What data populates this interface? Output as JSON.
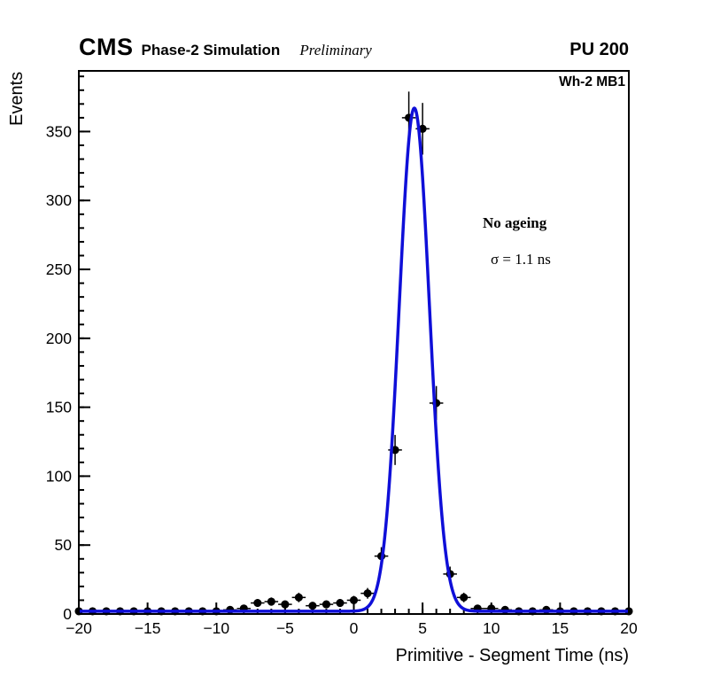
{
  "header": {
    "experiment": "CMS",
    "subtitle": "Phase-2 Simulation",
    "preliminary": "Preliminary",
    "pileup": "PU 200"
  },
  "plot": {
    "region_label": "Wh-2 MB1",
    "annotation_title": "No ageing",
    "annotation_sigma": "σ = 1.1 ns"
  },
  "chart_data": {
    "type": "scatter",
    "title": "",
    "xlabel": "Primitive - Segment Time (ns)",
    "ylabel": "Events",
    "xlim": [
      -20,
      20
    ],
    "ylim": [
      0,
      394
    ],
    "xticks": [
      -20,
      -15,
      -10,
      -5,
      0,
      5,
      10,
      15,
      20
    ],
    "yticks": [
      0,
      50,
      100,
      150,
      200,
      250,
      300,
      350
    ],
    "x_minor_step": 1,
    "y_minor_step": 10,
    "grid": false,
    "legend_position": "none",
    "series": [
      {
        "name": "data",
        "marker": "filled-circle",
        "color": "#000000",
        "xerr": 0.5,
        "yerr": "sqrt(y)",
        "x": [
          -20,
          -19,
          -18,
          -17,
          -16,
          -15,
          -14,
          -13,
          -12,
          -11,
          -10,
          -9,
          -8,
          -7,
          -6,
          -5,
          -4,
          -3,
          -2,
          -1,
          0,
          1,
          2,
          3,
          4,
          5,
          6,
          7,
          8,
          9,
          10,
          11,
          12,
          13,
          14,
          15,
          16,
          17,
          18,
          19,
          20
        ],
        "y": [
          2,
          2,
          2,
          2,
          2,
          2,
          2,
          2,
          2,
          2,
          2,
          3,
          4,
          8,
          9,
          7,
          12,
          6,
          7,
          8,
          10,
          15,
          42,
          119,
          360,
          352,
          153,
          29,
          12,
          4,
          4,
          3,
          2,
          2,
          3,
          2,
          2,
          2,
          2,
          2,
          2
        ]
      }
    ],
    "fit": {
      "name": "gaussian-fit",
      "model": "constant + gaussian",
      "constant": 2,
      "amplitude": 365,
      "mean": 4.4,
      "sigma": 1.1,
      "color": "#0f0fd8",
      "linewidth": 3.5
    }
  },
  "colors": {
    "background": "#ffffff",
    "frame": "#000000",
    "marker": "#000000",
    "fit_curve": "#0f0fd8"
  }
}
